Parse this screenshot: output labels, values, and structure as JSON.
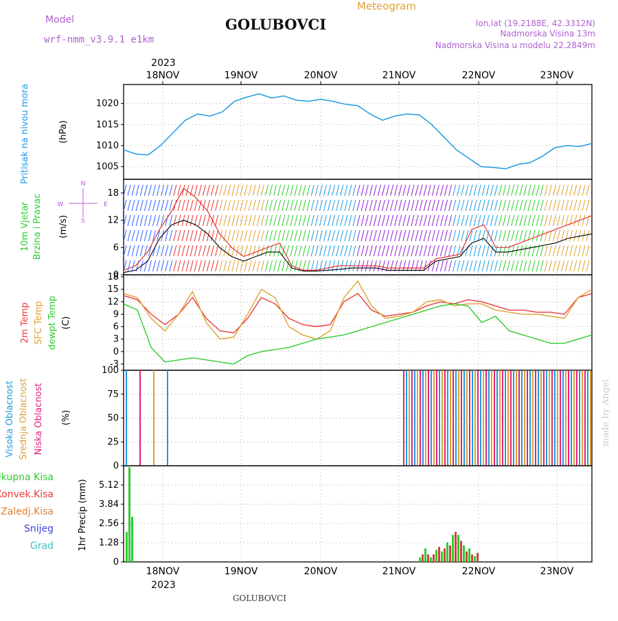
{
  "header": {
    "model_label": "Model",
    "model_name": "wrf-nmm_v3.9.1 e1km",
    "title": "GOLUBOVCI",
    "subtitle": "Meteogram",
    "lonlat": "lon,lat (19.2188E, 42.3312N)",
    "elevation": "Nadmorska Visina 13m",
    "model_elevation": "Nadmorska Visina u modelu 22.2849m",
    "footer": "GOLUBOVCI",
    "credit": "made by Angel",
    "year_top": "2023",
    "year_bottom": "2023"
  },
  "colors": {
    "pressure": "#1e9be0",
    "temp2m": "#e83a3a",
    "sfc": "#e0a030",
    "dew": "#2ecc2e",
    "cloud_high": "#1e9be0",
    "cloud_mid": "#e0a030",
    "cloud_low": "#e0207a",
    "precip_total": "#2ecc2e",
    "precip_conv": "#d04040",
    "precip_frozen": "#e08030",
    "snow": "#4040e0",
    "grad": "#40c0c0",
    "purple": "#b060d0",
    "wind_max": "#e83030",
    "wind_mean": "#000000"
  },
  "wind_compass": {
    "n": "N",
    "s": "S",
    "w": "W",
    "e": "E"
  },
  "chart_data": [
    {
      "type": "line",
      "name": "pressure",
      "ylabel_left": "Pritisak na nivou mora",
      "unit": "(hPa)",
      "x_ticks": [
        "18NOV",
        "19NOV",
        "20NOV",
        "21NOV",
        "22NOV",
        "23NOV"
      ],
      "ylim": [
        1002,
        1024.5
      ],
      "y_ticks": [
        1005,
        1010,
        1015,
        1020
      ],
      "grid": true,
      "x": [
        0,
        1,
        2,
        3,
        4,
        5,
        6,
        7,
        8,
        9,
        10,
        11,
        12,
        13,
        14,
        15,
        16,
        17,
        18,
        19,
        20,
        21,
        22,
        23,
        24,
        25,
        26,
        27,
        28,
        29,
        30,
        31,
        32,
        33,
        34,
        35,
        36,
        37,
        38,
        39,
        40,
        41,
        42,
        43,
        44,
        45,
        46,
        47,
        48,
        49,
        50,
        51,
        52,
        53,
        54,
        55,
        56,
        57,
        58,
        59
      ],
      "series": [
        {
          "values": [
            1009,
            1008,
            1007.8,
            1010,
            1013,
            1016,
            1017.5,
            1017,
            1018,
            1020.5,
            1021.5,
            1022.3,
            1021.3,
            1021.8,
            1020.8,
            1020.5,
            1021,
            1020.5,
            1019.8,
            1019.5,
            1017.5,
            1016,
            1017,
            1017.5,
            1017.3,
            1015,
            1012,
            1009,
            1007,
            1005,
            1004.8,
            1004.5,
            1005.5,
            1006,
            1007.5,
            1009.5,
            1010,
            1009.8,
            1010.5,
            1010.5,
            1010.5,
            1010.5,
            1010.5,
            1010.5,
            1010.5,
            1010.5,
            1010.5,
            1010.5,
            1010.5,
            1010.5,
            1010.5,
            1010.5,
            1010.5,
            1010.5,
            1010.5,
            1010.5,
            1010.5,
            1010.5,
            1010.5,
            1010.5
          ]
        }
      ]
    },
    {
      "type": "line",
      "name": "wind",
      "ylabel_left_1": "10m Vjetar",
      "ylabel_left_2": "Brzina i Pravac",
      "unit": "(m/s)",
      "ylim": [
        0,
        21
      ],
      "y_ticks": [
        0,
        6,
        12,
        18
      ],
      "grid": true,
      "series": [
        {
          "name": "max",
          "values": [
            1,
            2,
            5,
            10,
            14,
            19,
            17,
            14,
            9,
            6,
            4,
            5,
            6,
            7,
            2,
            1,
            1,
            1.5,
            2,
            2,
            2,
            2,
            1.5,
            1.5,
            1.5,
            1.5,
            3.5,
            4,
            4.5,
            10,
            11,
            6,
            6,
            7,
            8,
            9,
            10,
            11,
            12,
            13
          ]
        },
        {
          "name": "mean",
          "values": [
            0.5,
            1,
            3,
            8,
            11,
            12,
            11,
            9,
            6,
            4,
            3,
            4,
            5,
            5,
            1.5,
            0.8,
            0.8,
            1,
            1.2,
            1.5,
            1.5,
            1.5,
            1,
            1,
            1,
            1,
            3,
            3.5,
            4,
            7,
            8,
            5,
            5,
            5.5,
            6,
            6.5,
            7,
            8,
            8.5,
            9
          ]
        }
      ]
    },
    {
      "type": "line",
      "name": "temperature",
      "ylabel_left_1": "2m Temp",
      "ylabel_left_2": "SFC Temp",
      "ylabel_left_3": "dewpt Temp",
      "unit": "(C)",
      "ylim": [
        -4.5,
        18.5
      ],
      "y_ticks": [
        -3,
        0,
        3,
        6,
        9,
        12,
        15,
        18
      ],
      "grid": true,
      "series": [
        {
          "name": "2m",
          "values": [
            13.5,
            12.5,
            9,
            6.5,
            9,
            13,
            8,
            5,
            4.5,
            8,
            13,
            11.5,
            8,
            6.5,
            6,
            6.5,
            12,
            14,
            10,
            8.5,
            9,
            9.5,
            11,
            12,
            11.5,
            12.5,
            12,
            11,
            10,
            10,
            9.5,
            9.5,
            9,
            13,
            14
          ]
        },
        {
          "name": "sfc",
          "values": [
            14,
            13,
            8,
            5,
            9,
            14.5,
            7,
            3,
            3.5,
            9,
            15,
            13,
            6,
            4,
            3,
            5,
            13,
            17,
            11,
            8,
            8.5,
            9.5,
            12,
            12.5,
            11,
            11.5,
            11.5,
            10,
            9.5,
            9,
            9,
            8.5,
            8,
            13,
            15
          ]
        },
        {
          "name": "dew",
          "values": [
            11.5,
            10,
            1,
            -2.5,
            -2,
            -1.5,
            -2,
            -2.5,
            -3,
            -1,
            0,
            0.5,
            1,
            2,
            3,
            3.5,
            4,
            5,
            6,
            7,
            8,
            9,
            10,
            11,
            11.5,
            11,
            7,
            8.5,
            5,
            4,
            3,
            2,
            2,
            3,
            4
          ]
        }
      ]
    },
    {
      "type": "bar",
      "name": "clouds",
      "ylabel_left_1": "Visoka Oblacnost",
      "ylabel_left_2": "Srednja Oblacnost",
      "ylabel_left_3": "Niska Oblacnost",
      "unit": "(%)",
      "ylim": [
        0,
        100
      ],
      "y_ticks": [
        0,
        25,
        50,
        75,
        100
      ],
      "grid": true
    },
    {
      "type": "bar",
      "name": "precip",
      "legend": [
        "Ukupna Kisa",
        "Konvek.Kisa",
        "Zaledj.Kisa",
        "Snijeg",
        "Grad"
      ],
      "unit": "1hr Precip (mm)",
      "ylim": [
        0,
        6.4
      ],
      "y_ticks": [
        0,
        1.28,
        2.56,
        3.84,
        5.12
      ],
      "y_tick_labels": [
        "0",
        "1.28",
        "2.56",
        "3.84",
        "5.12"
      ],
      "x_ticks": [
        "18NOV",
        "19NOV",
        "20NOV",
        "21NOV",
        "22NOV",
        "23NOV"
      ],
      "grid": true
    }
  ]
}
